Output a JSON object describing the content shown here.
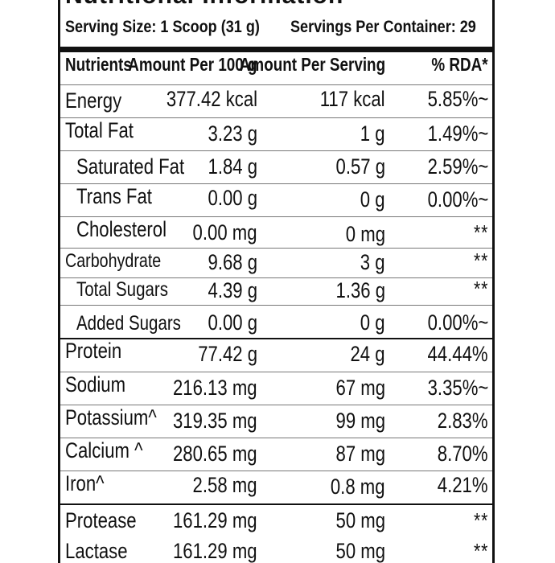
{
  "label": {
    "title": "Nutritional Information",
    "serving_size": "Serving Size: 1 Scoop (31 g)",
    "servings_per_container": "Servings Per Container: 29"
  },
  "table": {
    "headers": [
      "Nutrients",
      "Amount Per 100 g",
      "Amount Per Serving",
      "% RDA*"
    ],
    "rows": [
      {
        "nutrient": "Energy",
        "per100": "377.42 kcal",
        "perServing": "117 kcal",
        "rda": "5.85%~"
      },
      {
        "nutrient": "Total Fat",
        "per100": "3.23 g",
        "perServing": "1 g",
        "rda": "1.49%~"
      },
      {
        "nutrient": "Saturated Fat",
        "per100": "1.84 g",
        "perServing": "0.57 g",
        "rda": "2.59%~"
      },
      {
        "nutrient": "Trans Fat",
        "per100": "0.00 g",
        "perServing": "0 g",
        "rda": "0.00%~"
      },
      {
        "nutrient": "Cholesterol",
        "per100": "0.00 mg",
        "perServing": "0 mg",
        "rda": "**"
      },
      {
        "nutrient": "Carbohydrate",
        "per100": "9.68 g",
        "perServing": "3 g",
        "rda": "**"
      },
      {
        "nutrient": "Total Sugars",
        "per100": "4.39 g",
        "perServing": "1.36 g",
        "rda": "**"
      },
      {
        "nutrient": "Added Sugars",
        "per100": "0.00 g",
        "perServing": "0 g",
        "rda": "0.00%~"
      },
      {
        "nutrient": "Protein",
        "per100": "77.42 g",
        "perServing": "24 g",
        "rda": "44.44%"
      },
      {
        "nutrient": "Sodium",
        "per100": "216.13 mg",
        "perServing": "67 mg",
        "rda": "3.35%~"
      },
      {
        "nutrient": "Potassium^",
        "per100": "319.35 mg",
        "perServing": "99 mg",
        "rda": "2.83%"
      },
      {
        "nutrient": "Calcium ^",
        "per100": "280.65 mg",
        "perServing": "87 mg",
        "rda": "8.70%"
      },
      {
        "nutrient": "Iron^",
        "per100": "2.58 mg",
        "perServing": "0.8 mg",
        "rda": "4.21%"
      },
      {
        "nutrient": "Protease",
        "per100": "161.29 mg",
        "perServing": "50 mg",
        "rda": "**"
      },
      {
        "nutrient": "Lactase",
        "per100": "161.29 mg",
        "perServing": "50 mg",
        "rda": "**"
      }
    ]
  }
}
